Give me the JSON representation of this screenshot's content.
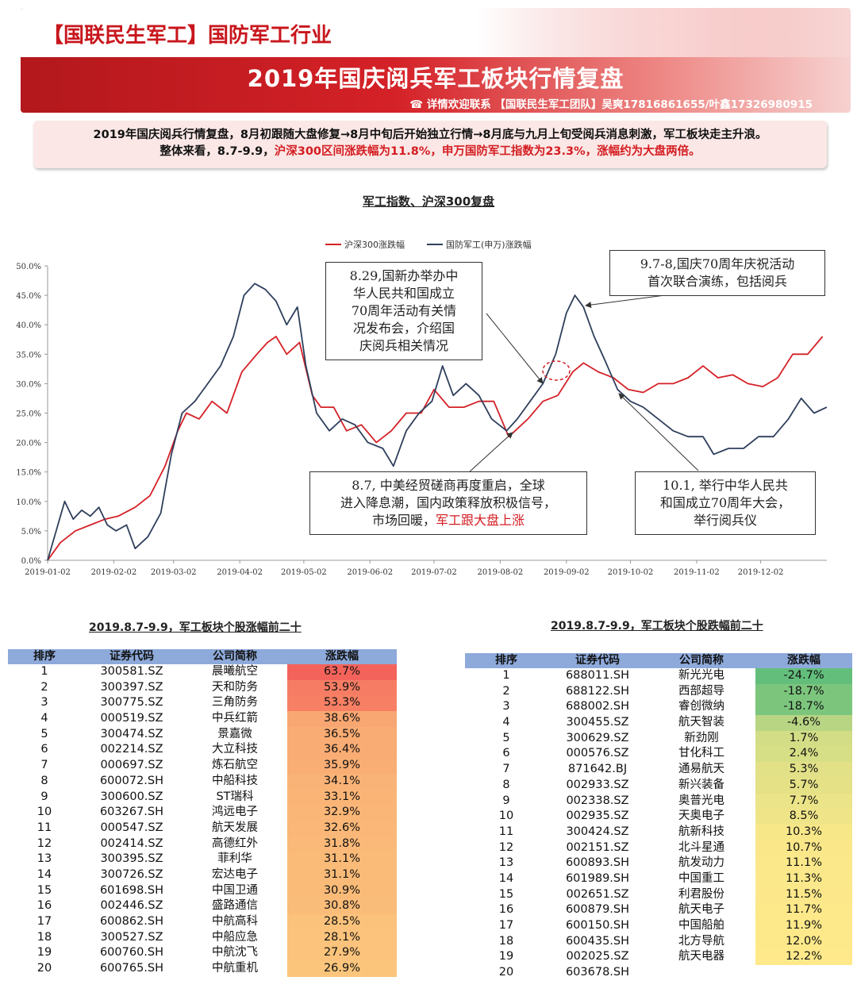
{
  "header": {
    "brand": "【国联民生军工】国防军工行业",
    "title": "2019年国庆阅兵军工板块行情复盘",
    "contact": "☎ 详情欢迎联系 【国联民生军工团队】吴爽17816861655/叶鑫17326980915"
  },
  "summary": {
    "line1": "2019年国庆阅兵行情复盘，8月初跟随大盘修复→8月中旬后开始独立行情→8月底与九月上旬受阅兵消息刺激，军工板块走主升浪。",
    "line2_prefix": "整体来看，8.7-9.9，",
    "line2_red": "沪深300区间涨跌幅为11.8%，申万国防军工指数为23.3%，涨幅约为大盘两倍。"
  },
  "chart_data": {
    "type": "line",
    "title": "军工指数、沪深300复盘",
    "ylim": [
      0,
      50
    ],
    "yticks": [
      "0.0%",
      "5.0%",
      "10.0%",
      "15.0%",
      "20.0%",
      "25.0%",
      "30.0%",
      "35.0%",
      "40.0%",
      "45.0%",
      "50.0%"
    ],
    "x_ticks": [
      "2019-01-02",
      "2019-02-02",
      "2019-03-02",
      "2019-04-02",
      "2019-05-02",
      "2019-06-02",
      "2019-07-02",
      "2019-08-02",
      "2019-09-02",
      "2019-10-02",
      "2019-11-02",
      "2019-12-02"
    ],
    "legend": "top-left",
    "series": [
      {
        "name": "沪深300涨跌幅",
        "color": "#d42127",
        "points": [
          [
            "2019-01-02",
            0
          ],
          [
            "2019-01-08",
            3
          ],
          [
            "2019-01-15",
            5
          ],
          [
            "2019-01-22",
            6
          ],
          [
            "2019-01-29",
            7
          ],
          [
            "2019-02-04",
            7.5
          ],
          [
            "2019-02-12",
            9
          ],
          [
            "2019-02-19",
            11
          ],
          [
            "2019-02-26",
            16
          ],
          [
            "2019-03-04",
            22
          ],
          [
            "2019-03-08",
            25
          ],
          [
            "2019-03-14",
            24
          ],
          [
            "2019-03-20",
            27
          ],
          [
            "2019-03-27",
            25
          ],
          [
            "2019-04-03",
            32
          ],
          [
            "2019-04-10",
            35
          ],
          [
            "2019-04-15",
            37
          ],
          [
            "2019-04-19",
            38
          ],
          [
            "2019-04-24",
            35
          ],
          [
            "2019-04-30",
            37
          ],
          [
            "2019-05-06",
            28
          ],
          [
            "2019-05-10",
            26
          ],
          [
            "2019-05-16",
            26
          ],
          [
            "2019-05-22",
            22
          ],
          [
            "2019-05-29",
            23
          ],
          [
            "2019-06-05",
            20
          ],
          [
            "2019-06-12",
            22
          ],
          [
            "2019-06-19",
            25
          ],
          [
            "2019-06-26",
            25
          ],
          [
            "2019-07-02",
            29
          ],
          [
            "2019-07-09",
            26
          ],
          [
            "2019-07-16",
            26
          ],
          [
            "2019-07-23",
            27
          ],
          [
            "2019-07-30",
            27
          ],
          [
            "2019-08-06",
            21
          ],
          [
            "2019-08-09",
            22
          ],
          [
            "2019-08-15",
            24
          ],
          [
            "2019-08-22",
            27
          ],
          [
            "2019-08-29",
            28
          ],
          [
            "2019-09-05",
            32
          ],
          [
            "2019-09-10",
            33.5
          ],
          [
            "2019-09-17",
            32
          ],
          [
            "2019-09-24",
            31
          ],
          [
            "2019-10-01",
            29
          ],
          [
            "2019-10-08",
            28.5
          ],
          [
            "2019-10-15",
            30
          ],
          [
            "2019-10-22",
            30
          ],
          [
            "2019-10-29",
            31
          ],
          [
            "2019-11-05",
            33
          ],
          [
            "2019-11-12",
            31
          ],
          [
            "2019-11-19",
            31.5
          ],
          [
            "2019-11-26",
            30
          ],
          [
            "2019-12-03",
            29.5
          ],
          [
            "2019-12-10",
            31
          ],
          [
            "2019-12-17",
            35
          ],
          [
            "2019-12-24",
            35
          ],
          [
            "2019-12-31",
            38
          ]
        ]
      },
      {
        "name": "国防军工(申万)涨跌幅",
        "color": "#2e3f5c",
        "points": [
          [
            "2019-01-02",
            0
          ],
          [
            "2019-01-06",
            5
          ],
          [
            "2019-01-10",
            10
          ],
          [
            "2019-01-14",
            7
          ],
          [
            "2019-01-18",
            8.5
          ],
          [
            "2019-01-22",
            7.5
          ],
          [
            "2019-01-26",
            9
          ],
          [
            "2019-01-30",
            6
          ],
          [
            "2019-02-03",
            5
          ],
          [
            "2019-02-08",
            6
          ],
          [
            "2019-02-12",
            2
          ],
          [
            "2019-02-18",
            4
          ],
          [
            "2019-02-24",
            8
          ],
          [
            "2019-03-01",
            18
          ],
          [
            "2019-03-06",
            25
          ],
          [
            "2019-03-12",
            27
          ],
          [
            "2019-03-18",
            30
          ],
          [
            "2019-03-24",
            33
          ],
          [
            "2019-03-30",
            38
          ],
          [
            "2019-04-04",
            45
          ],
          [
            "2019-04-09",
            47
          ],
          [
            "2019-04-14",
            46
          ],
          [
            "2019-04-19",
            44
          ],
          [
            "2019-04-24",
            40
          ],
          [
            "2019-04-29",
            43
          ],
          [
            "2019-05-03",
            33
          ],
          [
            "2019-05-08",
            25
          ],
          [
            "2019-05-14",
            22
          ],
          [
            "2019-05-20",
            24
          ],
          [
            "2019-05-26",
            23
          ],
          [
            "2019-06-01",
            20
          ],
          [
            "2019-06-08",
            19
          ],
          [
            "2019-06-13",
            16
          ],
          [
            "2019-06-19",
            22
          ],
          [
            "2019-06-25",
            25
          ],
          [
            "2019-07-01",
            27
          ],
          [
            "2019-07-06",
            33
          ],
          [
            "2019-07-11",
            28
          ],
          [
            "2019-07-17",
            30
          ],
          [
            "2019-07-23",
            28
          ],
          [
            "2019-07-29",
            24
          ],
          [
            "2019-08-05",
            22
          ],
          [
            "2019-08-10",
            24
          ],
          [
            "2019-08-16",
            27
          ],
          [
            "2019-08-22",
            30
          ],
          [
            "2019-08-28",
            35
          ],
          [
            "2019-09-02",
            42
          ],
          [
            "2019-09-06",
            45
          ],
          [
            "2019-09-10",
            43
          ],
          [
            "2019-09-15",
            38
          ],
          [
            "2019-09-20",
            34
          ],
          [
            "2019-09-26",
            29
          ],
          [
            "2019-10-02",
            27
          ],
          [
            "2019-10-08",
            26
          ],
          [
            "2019-10-15",
            24
          ],
          [
            "2019-10-22",
            22
          ],
          [
            "2019-10-29",
            21
          ],
          [
            "2019-11-05",
            21
          ],
          [
            "2019-11-10",
            18
          ],
          [
            "2019-11-17",
            19
          ],
          [
            "2019-11-24",
            19
          ],
          [
            "2019-12-01",
            21
          ],
          [
            "2019-12-08",
            21
          ],
          [
            "2019-12-15",
            24
          ],
          [
            "2019-12-21",
            27.5
          ],
          [
            "2019-12-27",
            25
          ],
          [
            "2020-01-02",
            26
          ]
        ]
      }
    ],
    "annotations": [
      {
        "text": [
          "8.29,国新办举办中",
          "华人民共和国成立",
          "70周年活动有关情",
          "况发布会，介绍国",
          "庆阅兵相关情况"
        ]
      },
      {
        "text": [
          "9.7-8,国庆70周年庆祝活动",
          "首次联合演练，包括阅兵"
        ]
      },
      {
        "text": [
          "8.7, 中美经贸磋商再度重启，全球",
          "进入降息潮，国内政策释放积极信号，"
        ],
        "last_line_black": "市场回暖，",
        "last_line_red": "军工跟大盘上涨"
      },
      {
        "text": [
          "10.1, 举行中华人民共",
          "和国成立70周年大会，",
          "举行阅兵仪"
        ]
      }
    ]
  },
  "table_gainers": {
    "title": "2019.8.7-9.9，军工板块个股涨幅前二十",
    "headers": [
      "排序",
      "证券代码",
      "公司简称",
      "涨跌幅"
    ],
    "rows": [
      [
        "1",
        "300581.SZ",
        "晨曦航空",
        "63.7%"
      ],
      [
        "2",
        "300397.SZ",
        "天和防务",
        "53.9%"
      ],
      [
        "3",
        "300775.SZ",
        "三角防务",
        "53.3%"
      ],
      [
        "4",
        "000519.SZ",
        "中兵红箭",
        "38.6%"
      ],
      [
        "5",
        "300474.SZ",
        "景嘉微",
        "36.5%"
      ],
      [
        "6",
        "002214.SZ",
        "大立科技",
        "36.4%"
      ],
      [
        "7",
        "000697.SZ",
        "炼石航空",
        "35.9%"
      ],
      [
        "8",
        "600072.SH",
        "中船科技",
        "34.1%"
      ],
      [
        "9",
        "300600.SZ",
        "ST瑞科",
        "33.1%"
      ],
      [
        "10",
        "603267.SH",
        "鸿远电子",
        "32.9%"
      ],
      [
        "11",
        "000547.SZ",
        "航天发展",
        "32.6%"
      ],
      [
        "12",
        "002414.SZ",
        "高德红外",
        "31.8%"
      ],
      [
        "13",
        "300395.SZ",
        "菲利华",
        "31.1%"
      ],
      [
        "14",
        "300726.SZ",
        "宏达电子",
        "31.1%"
      ],
      [
        "15",
        "601698.SH",
        "中国卫通",
        "30.9%"
      ],
      [
        "16",
        "002446.SZ",
        "盛路通信",
        "30.8%"
      ],
      [
        "17",
        "600862.SH",
        "中航高科",
        "28.5%"
      ],
      [
        "18",
        "300527.SZ",
        "中船应急",
        "28.1%"
      ],
      [
        "19",
        "600760.SH",
        "中航沈飞",
        "27.9%"
      ],
      [
        "20",
        "600765.SH",
        "中航重机",
        "26.9%"
      ]
    ]
  },
  "table_losers": {
    "title": "2019.8.7-9.9，军工板块个股跌幅前二十",
    "headers": [
      "排序",
      "证券代码",
      "公司简称",
      "涨跌幅"
    ],
    "rows": [
      [
        "1",
        "688011.SH",
        "新光光电",
        "-24.7%"
      ],
      [
        "2",
        "688122.SH",
        "西部超导",
        "-18.7%"
      ],
      [
        "3",
        "688002.SH",
        "睿创微纳",
        "-18.7%"
      ],
      [
        "4",
        "300455.SZ",
        "航天智装",
        "-4.6%"
      ],
      [
        "5",
        "300629.SZ",
        "新劲刚",
        "1.7%"
      ],
      [
        "6",
        "000576.SZ",
        "甘化科工",
        "2.4%"
      ],
      [
        "7",
        "871642.BJ",
        "通易航天",
        "5.3%"
      ],
      [
        "8",
        "002933.SZ",
        "新兴装备",
        "5.7%"
      ],
      [
        "9",
        "002338.SZ",
        "奥普光电",
        "7.7%"
      ],
      [
        "10",
        "002935.SZ",
        "天奥电子",
        "8.5%"
      ],
      [
        "11",
        "300424.SZ",
        "航新科技",
        "10.3%"
      ],
      [
        "12",
        "002151.SZ",
        "北斗星通",
        "10.7%"
      ],
      [
        "13",
        "600893.SH",
        "航发动力",
        "11.1%"
      ],
      [
        "14",
        "601989.SH",
        "中国重工",
        "11.3%"
      ],
      [
        "15",
        "002651.SZ",
        "利君股份",
        "11.5%"
      ],
      [
        "16",
        "600879.SH",
        "航天电子",
        "11.7%"
      ],
      [
        "17",
        "600150.SH",
        "中国船舶",
        "11.9%"
      ],
      [
        "18",
        "600435.SH",
        "北方导航",
        "12.0%"
      ],
      [
        "19",
        "002025.SZ",
        "航天电器",
        "12.2%"
      ],
      [
        "20",
        "603678.SH",
        "",
        ""
      ]
    ]
  }
}
